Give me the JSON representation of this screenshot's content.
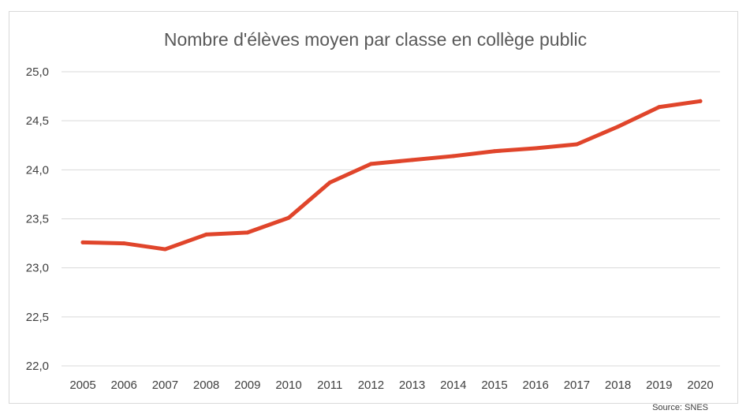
{
  "chart_data": {
    "type": "line",
    "title": "Nombre d'élèves moyen par classe en collège public",
    "xlabel": "",
    "ylabel": "",
    "x": [
      "2005",
      "2006",
      "2007",
      "2008",
      "2009",
      "2010",
      "2011",
      "2012",
      "2013",
      "2014",
      "2015",
      "2016",
      "2017",
      "2018",
      "2019",
      "2020"
    ],
    "series": [
      {
        "values": [
          23.26,
          23.25,
          23.19,
          23.34,
          23.36,
          23.51,
          23.87,
          24.06,
          24.1,
          24.14,
          24.19,
          24.22,
          24.26,
          24.44,
          24.64,
          24.7
        ],
        "color": "#e0452b"
      }
    ],
    "ylim": [
      22.0,
      25.0
    ],
    "yticks": [
      22.0,
      22.5,
      23.0,
      23.5,
      24.0,
      24.5,
      25.0
    ],
    "ytick_labels": [
      "22,0",
      "22,5",
      "23,0",
      "23,5",
      "24,0",
      "24,5",
      "25,0"
    ],
    "grid": true,
    "legend": "none",
    "source": "Source: SNES"
  }
}
